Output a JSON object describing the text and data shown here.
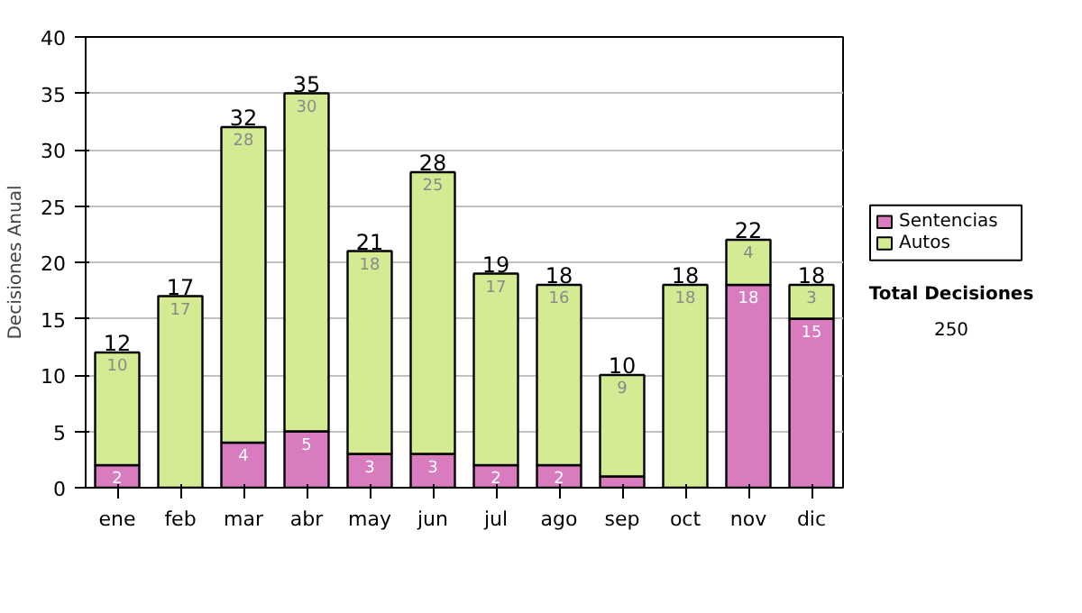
{
  "chart_data": {
    "type": "bar",
    "stacked": true,
    "ylabel": "Decisiones Anual",
    "categories": [
      "ene",
      "feb",
      "mar",
      "abr",
      "may",
      "jun",
      "jul",
      "ago",
      "sep",
      "oct",
      "nov",
      "dic"
    ],
    "series": [
      {
        "name": "Sentencias",
        "color": "#d97bbf",
        "values": [
          2,
          0,
          4,
          5,
          3,
          3,
          2,
          2,
          1,
          0,
          18,
          15
        ],
        "value_labels": [
          "2",
          null,
          "4",
          "5",
          "3",
          "3",
          "2",
          "2",
          null,
          null,
          "18",
          "15"
        ]
      },
      {
        "name": "Autos",
        "color": "#d4eb94",
        "values": [
          10,
          17,
          28,
          30,
          18,
          25,
          17,
          16,
          9,
          18,
          4,
          3
        ],
        "value_labels": [
          "10",
          "17",
          "28",
          "30",
          "18",
          "25",
          "17",
          "16",
          "9",
          "18",
          "4",
          "3"
        ]
      }
    ],
    "totals": [
      "12",
      "17",
      "32",
      "35",
      "21",
      "28",
      "19",
      "18",
      "10",
      "18",
      "22",
      "18"
    ],
    "ylim": [
      0,
      40
    ],
    "yticks": [
      0,
      5,
      10,
      15,
      20,
      25,
      30,
      35,
      40
    ],
    "grid": "y",
    "legend": "right",
    "annotations": [
      "Total Decisiones",
      "250"
    ]
  }
}
